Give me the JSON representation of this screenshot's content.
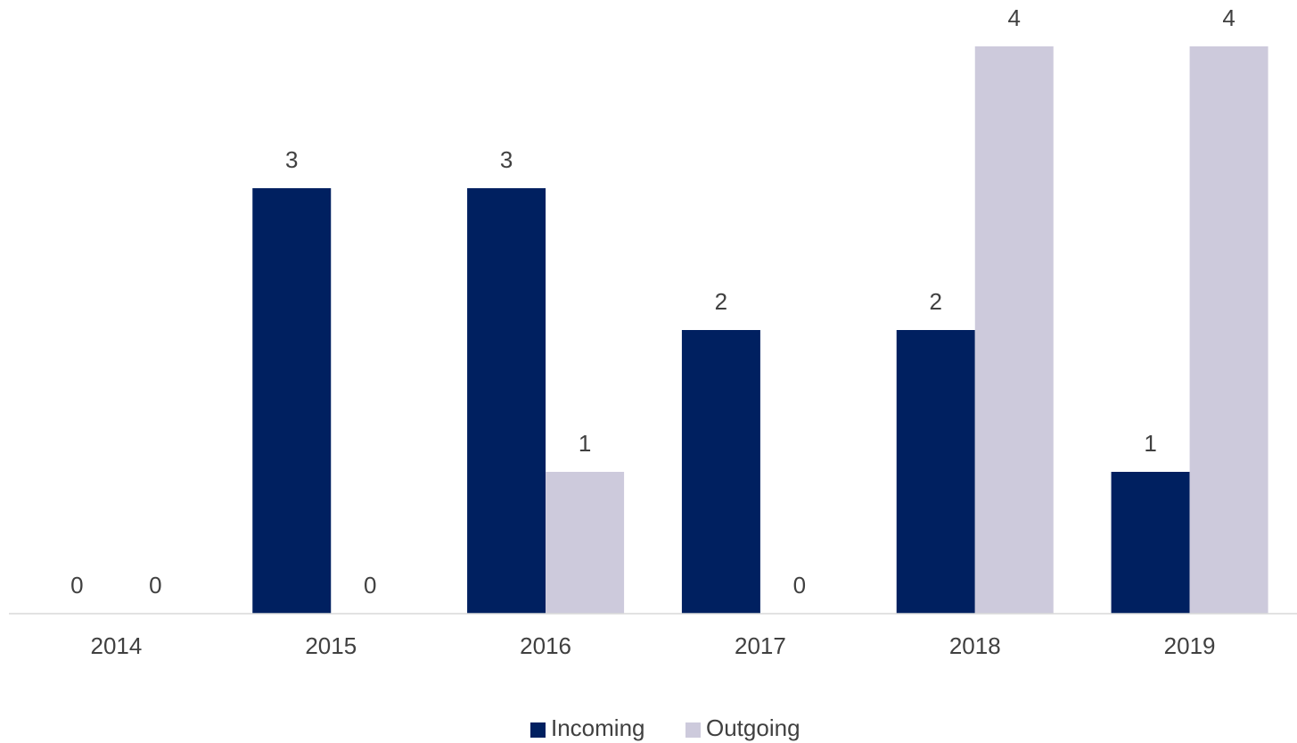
{
  "chart_data": {
    "type": "bar",
    "categories": [
      "2014",
      "2015",
      "2016",
      "2017",
      "2018",
      "2019"
    ],
    "series": [
      {
        "name": "Incoming",
        "color": "#002060",
        "values": [
          0,
          3,
          3,
          2,
          2,
          1
        ]
      },
      {
        "name": "Outgoing",
        "color": "#cdcadc",
        "values": [
          0,
          0,
          1,
          0,
          4,
          4
        ]
      }
    ],
    "ylim": [
      0,
      4
    ],
    "legend": "bottom"
  }
}
